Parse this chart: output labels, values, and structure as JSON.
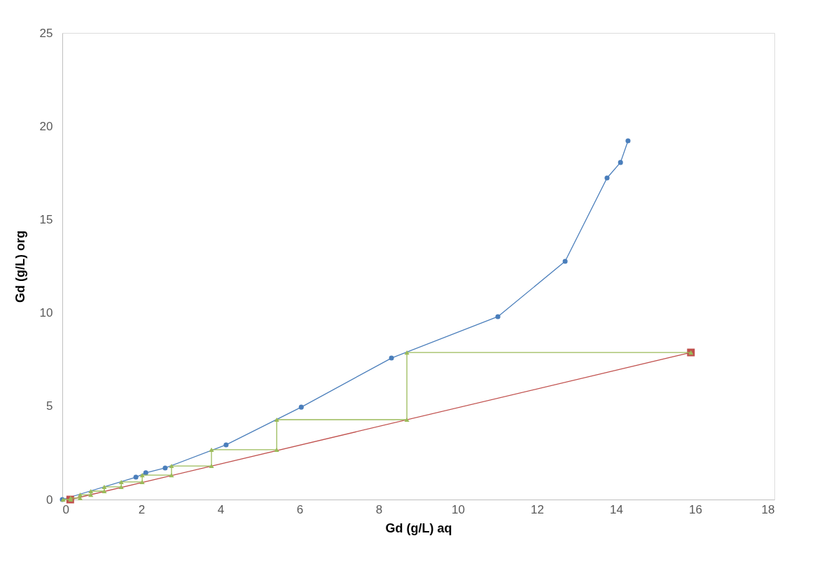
{
  "chart_data": {
    "type": "line",
    "xlabel": "Gd (g/L) aq",
    "ylabel": "Gd (g/L) org",
    "xlim": [
      0,
      18
    ],
    "ylim": [
      0,
      25
    ],
    "xticks": [
      0,
      2,
      4,
      6,
      8,
      10,
      12,
      14,
      16,
      18
    ],
    "yticks": [
      0,
      5,
      10,
      15,
      20,
      25
    ],
    "grid": false,
    "line_style": "solid",
    "series": [
      {
        "color": "#4a7ebb",
        "marker": "circle",
        "x": [
          0,
          1.86,
          2.11,
          2.6,
          4.14,
          6.04,
          8.32,
          11.01,
          12.71,
          13.77,
          14.11,
          14.3
        ],
        "values": [
          0,
          1.2,
          1.43,
          1.69,
          2.93,
          4.95,
          7.58,
          9.8,
          12.76,
          17.23,
          18.06,
          19.22
        ]
      },
      {
        "color": "#c0504d",
        "marker": "square",
        "x": [
          0.2,
          15.89
        ],
        "values": [
          0,
          7.88
        ]
      },
      {
        "color": "#9bbb59",
        "marker": "triangle",
        "x": [
          15.89,
          8.71,
          8.71,
          5.42,
          5.42,
          3.77,
          3.77,
          2.76,
          2.76,
          2.02,
          2.02,
          1.49,
          1.49,
          1.06,
          1.06,
          0.72,
          0.72,
          0.45,
          0.45,
          0.21,
          0.21,
          0.02
        ],
        "values": [
          7.88,
          7.88,
          4.28,
          4.28,
          2.67,
          2.67,
          1.8,
          1.8,
          1.31,
          1.31,
          0.94,
          0.94,
          0.68,
          0.68,
          0.45,
          0.45,
          0.26,
          0.26,
          0.08,
          0.08,
          0,
          0
        ]
      }
    ]
  }
}
